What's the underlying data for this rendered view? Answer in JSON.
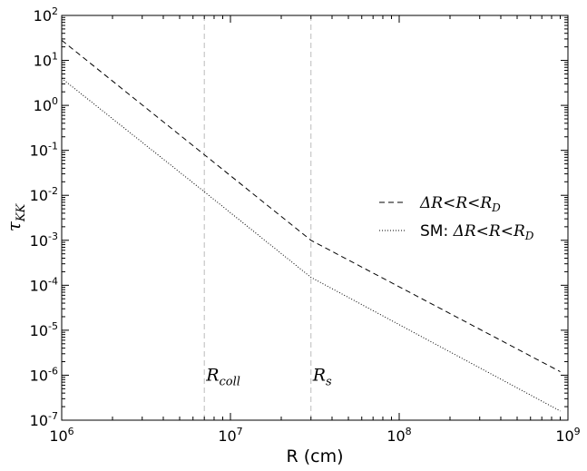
{
  "chart_data": {
    "type": "line",
    "title": "",
    "xlabel": "R (cm)",
    "ylabel": "τ_KK",
    "xscale": "log",
    "yscale": "log",
    "xlim": [
      1000000,
      1000000000
    ],
    "ylim": [
      1e-07,
      100
    ],
    "x_ticks": [
      {
        "base": "10",
        "exp": "6"
      },
      {
        "base": "10",
        "exp": "7"
      },
      {
        "base": "10",
        "exp": "8"
      },
      {
        "base": "10",
        "exp": "9"
      }
    ],
    "y_ticks": [
      {
        "base": "10",
        "exp": "-7"
      },
      {
        "base": "10",
        "exp": "-6"
      },
      {
        "base": "10",
        "exp": "-5"
      },
      {
        "base": "10",
        "exp": "-4"
      },
      {
        "base": "10",
        "exp": "-3"
      },
      {
        "base": "10",
        "exp": "-2"
      },
      {
        "base": "10",
        "exp": "-1"
      },
      {
        "base": "10",
        "exp": "0"
      },
      {
        "base": "10",
        "exp": "1"
      },
      {
        "base": "10",
        "exp": "2"
      }
    ],
    "series": [
      {
        "name": "ΔR<R<R_D",
        "style": "dashed",
        "color": "#000000",
        "x": [
          1000000,
          7000000,
          30000000,
          900000000
        ],
        "y": [
          28,
          0.08,
          0.001,
          1.2e-06
        ]
      },
      {
        "name": "SM: ΔR<R<R_D",
        "style": "dotted",
        "color": "#000000",
        "x": [
          1000000,
          7000000,
          30000000,
          900000000
        ],
        "y": [
          4,
          0.012,
          0.00015,
          1.6e-07
        ]
      }
    ],
    "vlines": [
      {
        "x": 7000000,
        "label": "R_coll",
        "label_y": 1e-06,
        "color": "#bbbbbb"
      },
      {
        "x": 30000000,
        "label": "R_s",
        "label_y": 1e-06,
        "color": "#bbbbbb"
      }
    ],
    "grid": false,
    "legend_position": "center-right"
  }
}
